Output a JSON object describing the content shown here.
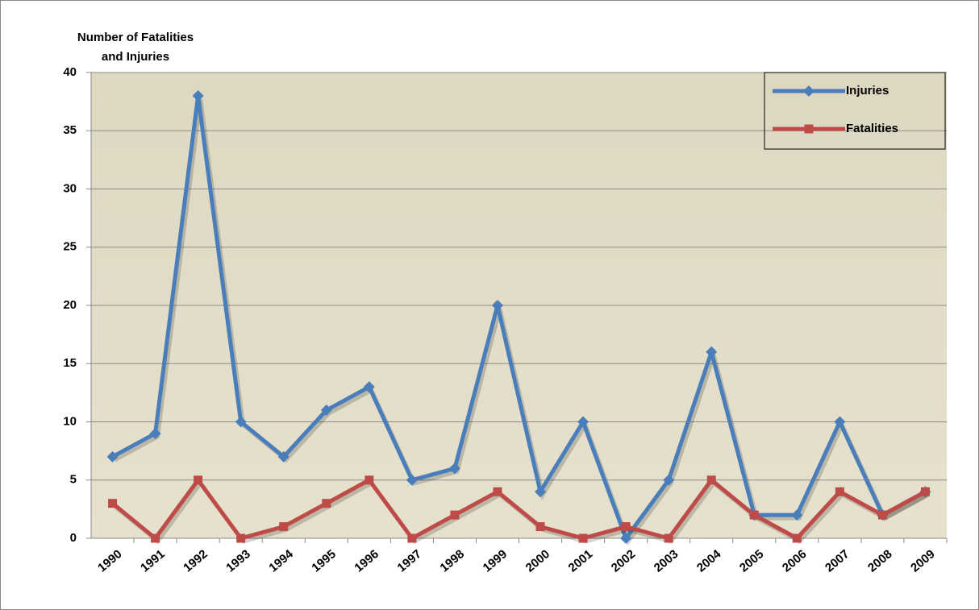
{
  "chart_data": {
    "type": "line",
    "ylabel": [
      "Number of Fatalities",
      "and Injuries"
    ],
    "categories": [
      "1990",
      "1991",
      "1992",
      "1993",
      "1994",
      "1995",
      "1996",
      "1997",
      "1998",
      "1999",
      "2000",
      "2001",
      "2002",
      "2003",
      "2004",
      "2005",
      "2006",
      "2007",
      "2008",
      "2009"
    ],
    "series": [
      {
        "name": "Injuries",
        "color": "#4a7ebb",
        "marker": "diamond",
        "values": [
          7,
          9,
          38,
          10,
          7,
          11,
          13,
          5,
          6,
          20,
          4,
          10,
          0,
          5,
          16,
          2,
          2,
          10,
          2,
          4
        ]
      },
      {
        "name": "Fatalities",
        "color": "#be4b48",
        "marker": "square",
        "values": [
          3,
          0,
          5,
          0,
          1,
          3,
          5,
          0,
          2,
          4,
          1,
          0,
          1,
          0,
          5,
          2,
          0,
          4,
          2,
          4
        ]
      }
    ],
    "ylim": [
      0,
      40
    ],
    "yticks": [
      0,
      5,
      10,
      15,
      20,
      25,
      30,
      35,
      40
    ],
    "grid": true,
    "legend": "upper right"
  }
}
